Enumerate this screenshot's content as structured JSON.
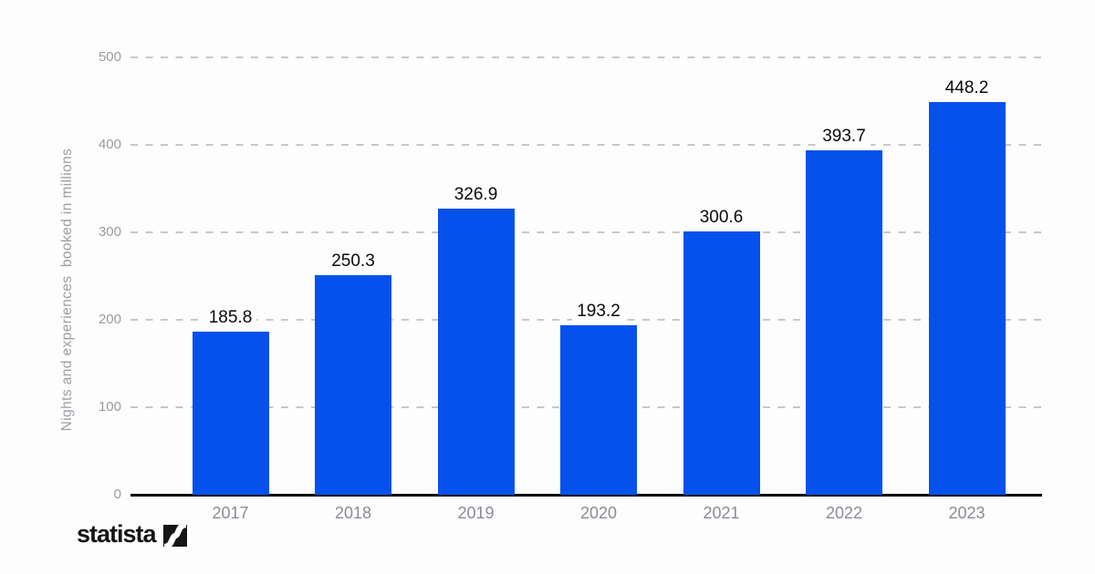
{
  "chart_data": {
    "type": "bar",
    "title": "",
    "categories": [
      "2017",
      "2018",
      "2019",
      "2020",
      "2021",
      "2022",
      "2023"
    ],
    "values": [
      185.8,
      250.3,
      326.9,
      193.2,
      300.6,
      393.7,
      448.2
    ],
    "value_labels": [
      "185.8",
      "250.3",
      "326.9",
      "193.2",
      "300.6",
      "393.7",
      "448.2"
    ],
    "xlabel": "",
    "ylabel": "Nights and experiences  booked in millions",
    "ylim": [
      0,
      500
    ],
    "yticks": [
      0,
      100,
      200,
      300,
      400,
      500
    ],
    "grid": "horizontal-dashed",
    "legend": "none",
    "colors": {
      "bar": "#0451ec",
      "gridline": "#c7c7cc",
      "axis_line": "#0b0b0d",
      "y_tick_text": "#9a9aa2",
      "x_tick_text": "#8b8b93",
      "value_label_text": "#0a0a0c",
      "background": "#fdfdfd"
    }
  },
  "branding": {
    "logo_text": "statista",
    "logo_mark": "statista-slope-mark"
  }
}
